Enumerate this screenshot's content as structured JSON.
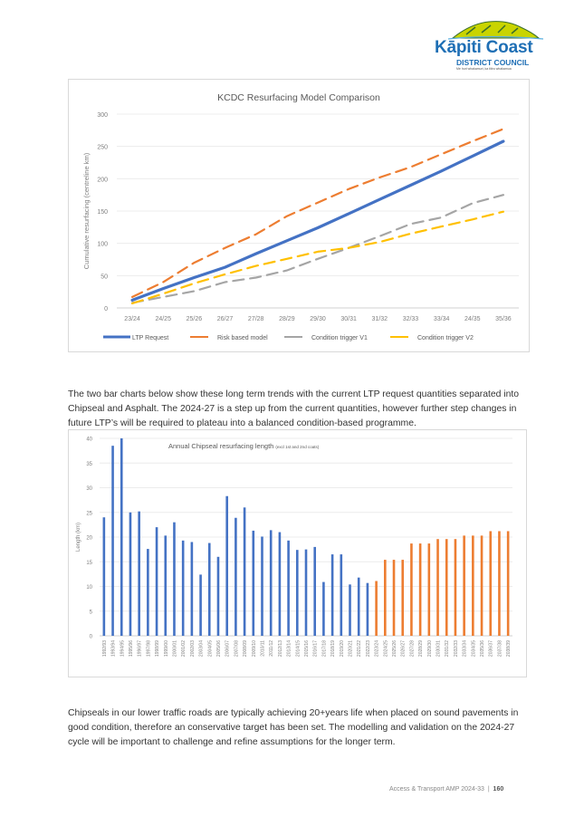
{
  "header": {
    "logo": {
      "name": "Kāpiti Coast",
      "subtitle": "DISTRICT COUNCIL",
      "tagline": "Me huri whakamuri, ka titiro whakamua"
    }
  },
  "paragraphs": [
    "The two bar charts below show these long term trends with the current LTP request quantities separated into Chipseal and Asphalt.  The 2024-27 is a step up from the current quantities, however further step changes in future LTP’s will be required to plateau into a balanced condition-based programme.",
    "Chipseals in our lower traffic roads are typically achieving 20+years life when placed on sound pavements in good condition, therefore an conservative target has been set.  The modelling and validation on the 2024-27 cycle will be important to challenge and refine assumptions for the longer term."
  ],
  "footer": {
    "doc_title": "Access & Transport AMP 2024-33",
    "separator": "|",
    "page_number": "160"
  },
  "chart_data": [
    {
      "type": "line",
      "title": "KCDC Resurfacing Model Comparison",
      "xlabel": "",
      "ylabel": "Cumulative resurfacing (centreline km)",
      "ylim": [
        0,
        300
      ],
      "yticks": [
        0,
        50,
        100,
        150,
        200,
        250,
        300
      ],
      "grid": true,
      "legend": "bottom",
      "categories": [
        "23/24",
        "24/25",
        "25/26",
        "26/27",
        "27/28",
        "28/29",
        "29/30",
        "30/31",
        "31/32",
        "32/33",
        "33/34",
        "24/35",
        "35/36"
      ],
      "series": [
        {
          "name": "LTP Request",
          "color": "#4472c4",
          "dash": "solid",
          "values": [
            12,
            30,
            47,
            63,
            84,
            104,
            124,
            146,
            168,
            190,
            212,
            235,
            258
          ]
        },
        {
          "name": "Risk based model",
          "color": "#ed7d31",
          "dash": "dashed",
          "values": [
            17,
            40,
            70,
            93,
            114,
            142,
            163,
            184,
            202,
            218,
            238,
            258,
            277
          ]
        },
        {
          "name": "Condition trigger V1",
          "color": "#a5a5a5",
          "dash": "dashed",
          "values": [
            8,
            17,
            26,
            40,
            47,
            58,
            76,
            93,
            111,
            130,
            140,
            162,
            175
          ]
        },
        {
          "name": "Condition trigger V2",
          "color": "#ffc000",
          "dash": "dashed",
          "values": [
            7,
            22,
            38,
            52,
            65,
            76,
            87,
            93,
            102,
            115,
            126,
            137,
            149
          ]
        }
      ]
    },
    {
      "type": "bar",
      "title": "Annual Chipseal resurfacing length",
      "title_note": "(excl 1st and 2nd coats)",
      "xlabel": "",
      "ylabel": "Length (km)",
      "ylim": [
        0,
        40
      ],
      "yticks": [
        0,
        5,
        10,
        15,
        20,
        25,
        30,
        35,
        40
      ],
      "grid": true,
      "legend": "none",
      "categories": [
        "1992/93",
        "1993/94",
        "1994/95",
        "1995/96",
        "1996/97",
        "1997/98",
        "1998/99",
        "1999/00",
        "2000/01",
        "2001/02",
        "2002/03",
        "2003/04",
        "2004/05",
        "2005/06",
        "2006/07",
        "2007/08",
        "2008/09",
        "2009/10",
        "2010/11",
        "2011/12",
        "2012/13",
        "2013/14",
        "2014/15",
        "2015/16",
        "2016/17",
        "2017/18",
        "2018/19",
        "2019/20",
        "2020/21",
        "2021/22",
        "2022/23",
        "2023/24",
        "2024/25",
        "2025/26",
        "2026/27",
        "2027/28",
        "2028/29",
        "2029/30",
        "2030/31",
        "2031/32",
        "2032/33",
        "2033/34",
        "2034/35",
        "2035/36",
        "2036/37",
        "2037/38",
        "2038/39"
      ],
      "values": [
        24,
        38.5,
        40,
        25,
        25.2,
        17.6,
        22,
        20.3,
        23,
        19.3,
        19,
        12.4,
        18.8,
        16,
        28.3,
        23.9,
        26,
        21.3,
        20.1,
        21.4,
        21,
        19.3,
        17.4,
        17.5,
        18,
        10.9,
        16.5,
        16.5,
        10.4,
        11.8,
        10.7,
        11.1,
        15.4,
        15.4,
        15.4,
        18.7,
        18.7,
        18.7,
        19.6,
        19.6,
        19.6,
        20.3,
        20.3,
        20.3,
        21.2,
        21.2,
        21.2
      ],
      "series_colors": {
        "historic": "#4472c4",
        "forecast": "#ed7d31"
      },
      "forecast_start": "2023/24"
    }
  ]
}
